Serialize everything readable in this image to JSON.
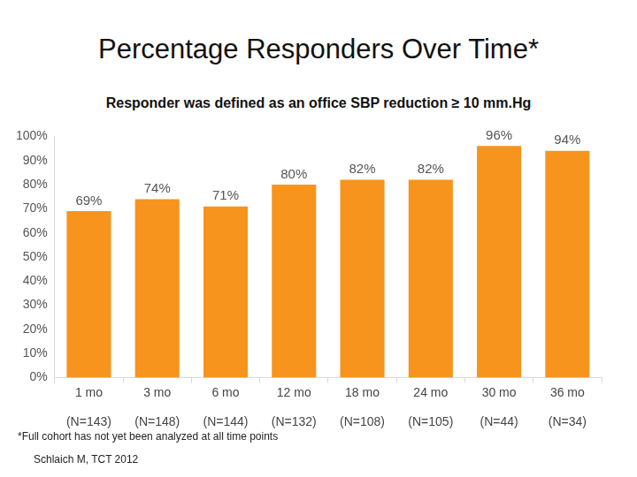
{
  "chart_data": {
    "type": "bar",
    "title": "Percentage Responders Over Time*",
    "subtitle": "Responder was defined as an office SBP reduction ≥ 10 mm.Hg",
    "categories": [
      "1 mo",
      "3 mo",
      "6 mo",
      "12 mo",
      "18 mo",
      "24 mo",
      "30 mo",
      "36 mo"
    ],
    "n_labels": [
      "(N=143)",
      "(N=148)",
      "(N=144)",
      "(N=132)",
      "(N=108)",
      "(N=105)",
      "(N=44)",
      "(N=34)"
    ],
    "values": [
      69,
      74,
      71,
      80,
      82,
      82,
      96,
      94
    ],
    "value_labels": [
      "69%",
      "74%",
      "71%",
      "80%",
      "82%",
      "82%",
      "96%",
      "94%"
    ],
    "data_labels": true,
    "color": "#f7941d",
    "ylim": [
      0,
      100
    ],
    "yticks": [
      {
        "value": 0,
        "label": "0%"
      },
      {
        "value": 10,
        "label": "10%"
      },
      {
        "value": 20,
        "label": "20%"
      },
      {
        "value": 30,
        "label": "30%"
      },
      {
        "value": 40,
        "label": "40%"
      },
      {
        "value": 50,
        "label": "50%"
      },
      {
        "value": 60,
        "label": "60%"
      },
      {
        "value": 70,
        "label": "70%"
      },
      {
        "value": 80,
        "label": "80%"
      },
      {
        "value": 90,
        "label": "90%"
      },
      {
        "value": 100,
        "label": "100%"
      }
    ],
    "grid": false,
    "footnote": "*Full cohort has not yet been analyzed at all time points",
    "source": "Schlaich M, TCT 2012"
  }
}
